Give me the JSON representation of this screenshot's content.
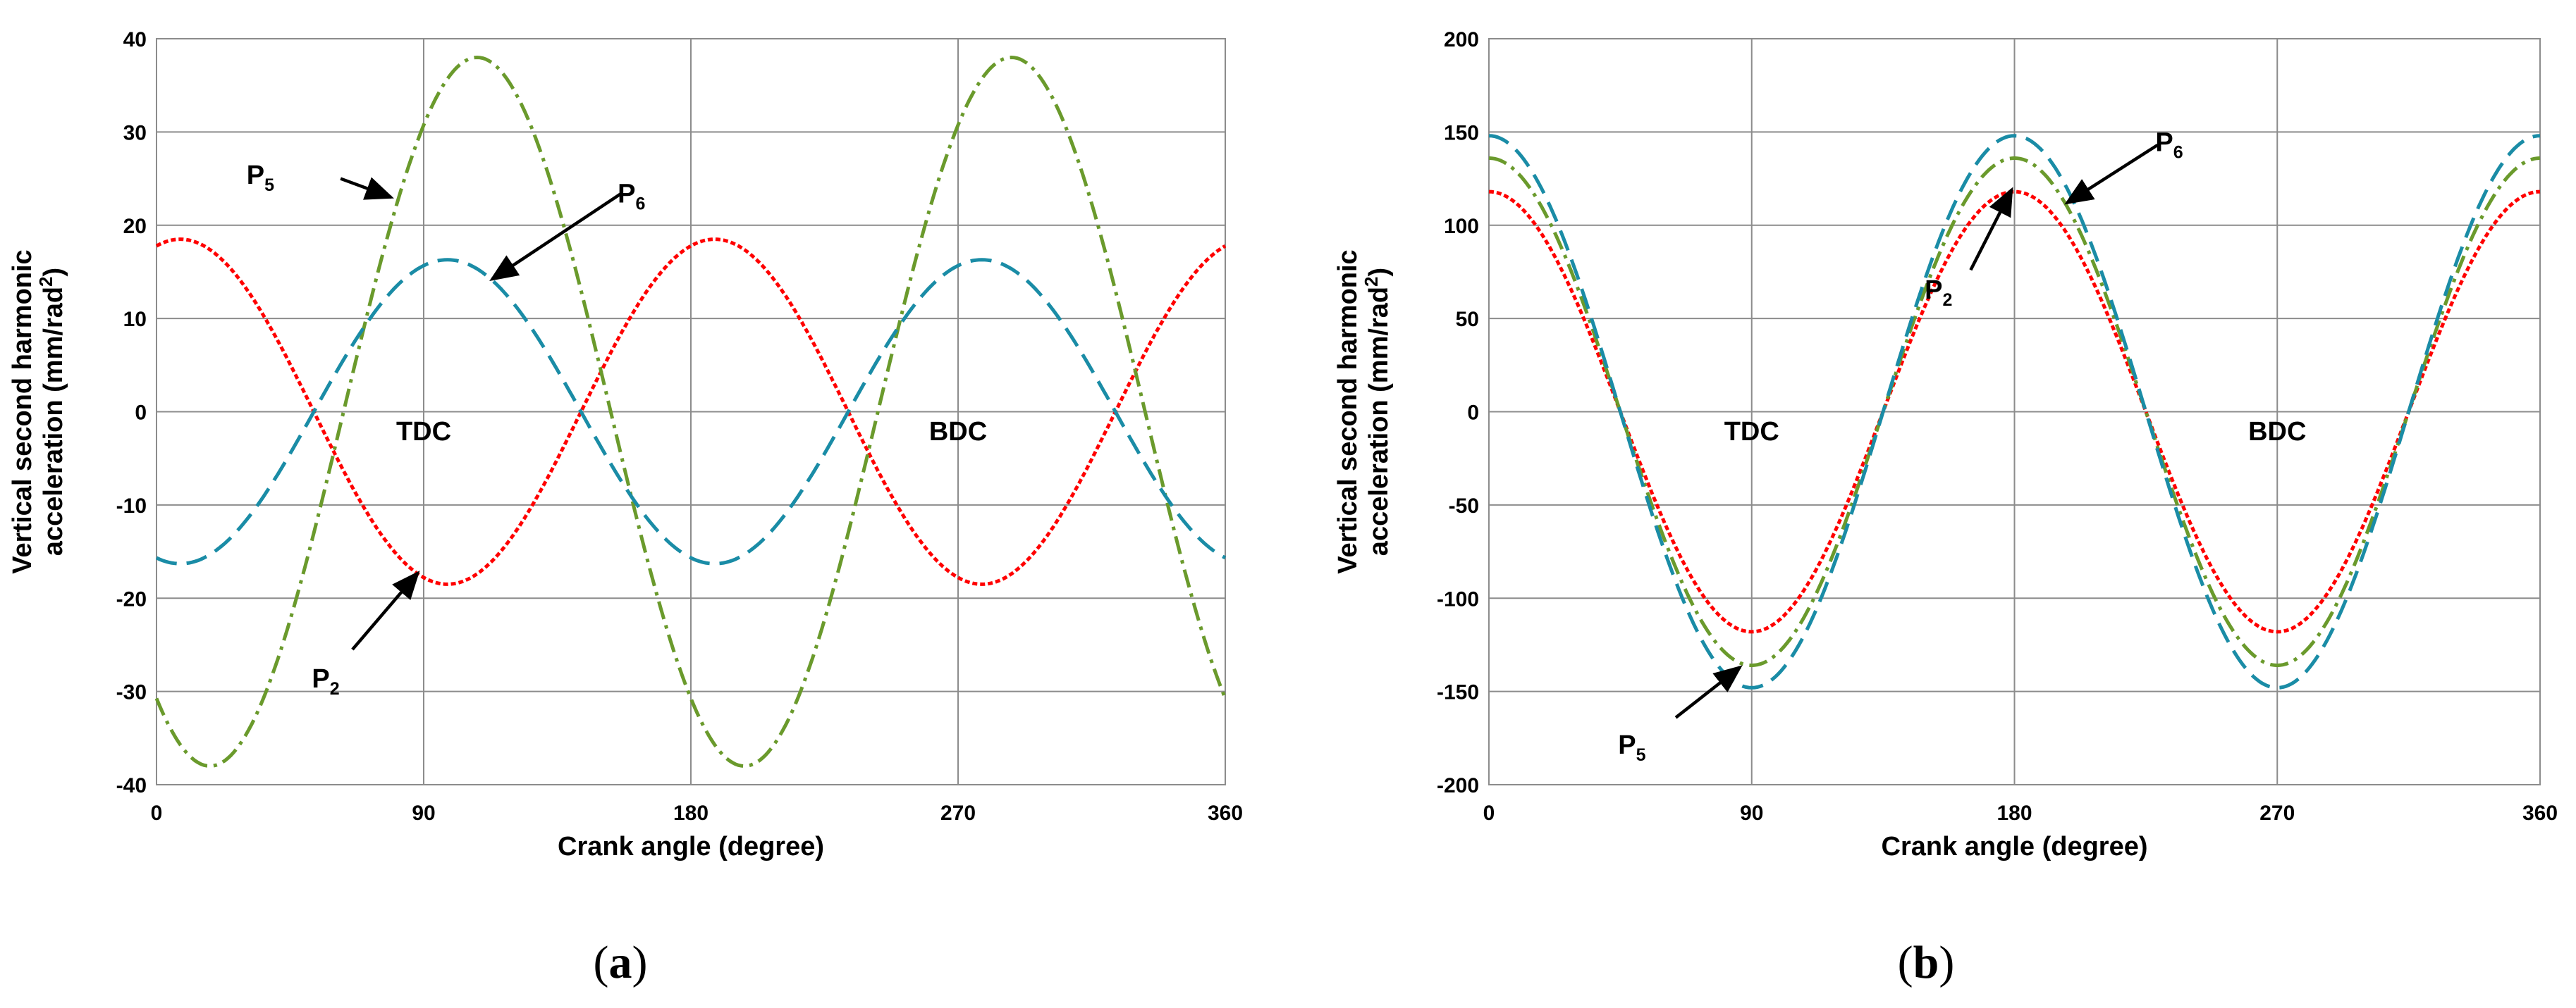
{
  "chart_data": [
    {
      "panel": "a",
      "type": "line",
      "caption_label": "a",
      "title": "",
      "xlabel": "Crank angle (degree)",
      "ylabel_line1": "Vertical second harmonic",
      "ylabel_line2": "acceleration (mm/rad",
      "ylabel_sup": "2",
      "ylabel_tail": ")",
      "xlim": [
        0,
        360
      ],
      "ylim": [
        -40,
        40
      ],
      "x_ticks": [
        0,
        90,
        180,
        270,
        360
      ],
      "y_ticks": [
        -40,
        -30,
        -20,
        -10,
        0,
        10,
        20,
        30,
        40
      ],
      "grid": true,
      "series": [
        {
          "name": "P2",
          "color": "#ff0000",
          "dash": "dotted",
          "amplitude": 18.5,
          "phase_deg": 8
        },
        {
          "name": "P5",
          "color": "#6a9a2c",
          "dash": "dashdot",
          "amplitude": 38,
          "phase_deg": 108
        },
        {
          "name": "P6",
          "color": "#1a8ca6",
          "dash": "dashed",
          "amplitude": 16.3,
          "phase_deg": 98
        }
      ],
      "region_labels": [
        {
          "text": "TDC",
          "x": 90,
          "y": -2
        },
        {
          "text": "BDC",
          "x": 270,
          "y": -2
        }
      ],
      "annotations": [
        {
          "series": "P5",
          "base": "P",
          "sub": "5",
          "label_at": [
            35,
            25.5
          ],
          "arrow_from": [
            62,
            25
          ],
          "arrow_to": [
            79,
            23
          ]
        },
        {
          "series": "P6",
          "base": "P",
          "sub": "6",
          "label_at": [
            160,
            23.5
          ],
          "arrow_from": [
            157,
            23.5
          ],
          "arrow_to": [
            113,
            14.2
          ]
        },
        {
          "series": "P2",
          "base": "P",
          "sub": "2",
          "label_at": [
            57,
            -28.5
          ],
          "arrow_from": [
            66,
            -25.5
          ],
          "arrow_to": [
            88,
            -17.3
          ]
        }
      ]
    },
    {
      "panel": "b",
      "type": "line",
      "caption_label": "b",
      "title": "",
      "xlabel": "Crank angle (degree)",
      "ylabel_line1": "Vertical second harmonic",
      "ylabel_line2": "acceleration (mm/rad",
      "ylabel_sup": "2",
      "ylabel_tail": ")",
      "xlim": [
        0,
        360
      ],
      "ylim": [
        -200,
        200
      ],
      "x_ticks": [
        0,
        90,
        180,
        270,
        360
      ],
      "y_ticks": [
        -200,
        -150,
        -100,
        -50,
        0,
        50,
        100,
        150,
        200
      ],
      "grid": true,
      "series": [
        {
          "name": "P2",
          "color": "#ff0000",
          "dash": "dotted",
          "amplitude": 118,
          "phase_deg": 0
        },
        {
          "name": "P5",
          "color": "#6a9a2c",
          "dash": "dashdot",
          "amplitude": 136,
          "phase_deg": 0
        },
        {
          "name": "P6",
          "color": "#1a8ca6",
          "dash": "dashed",
          "amplitude": 148,
          "phase_deg": 0
        }
      ],
      "region_labels": [
        {
          "text": "TDC",
          "x": 90,
          "y": -10
        },
        {
          "text": "BDC",
          "x": 270,
          "y": -10
        }
      ],
      "annotations": [
        {
          "series": "P6",
          "base": "P",
          "sub": "6",
          "label_at": [
            233,
            145
          ],
          "arrow_from": [
            229,
            143
          ],
          "arrow_to": [
            198,
            112
          ]
        },
        {
          "series": "P2",
          "base": "P",
          "sub": "2",
          "label_at": [
            154,
            66
          ],
          "arrow_from": [
            165,
            76
          ],
          "arrow_to": [
            179,
            119
          ]
        },
        {
          "series": "P5",
          "base": "P",
          "sub": "5",
          "label_at": [
            49,
            -178
          ],
          "arrow_from": [
            64,
            -164
          ],
          "arrow_to": [
            86,
            -137
          ]
        }
      ]
    }
  ]
}
